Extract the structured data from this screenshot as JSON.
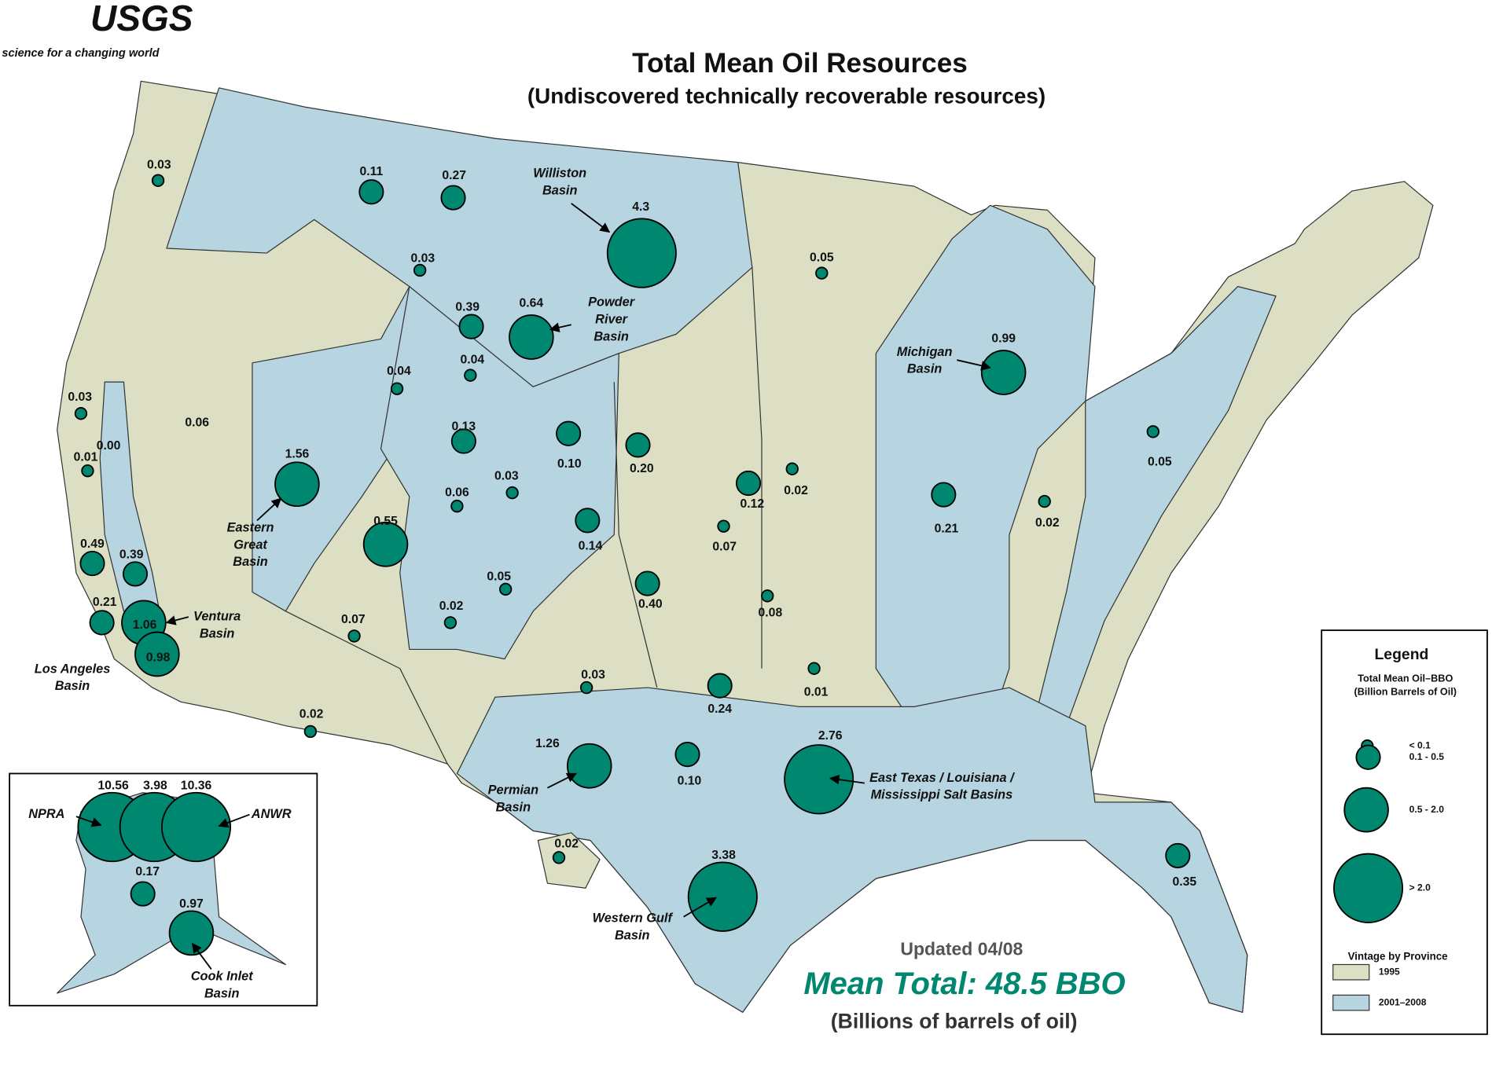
{
  "header": {
    "logo": "USGS",
    "tagline": "science for a changing world",
    "title": "Total Mean Oil Resources",
    "subtitle": "(Undiscovered technically recoverable resources)"
  },
  "summary": {
    "updated": "Updated 04/08",
    "total": "Mean Total: 48.5 BBO",
    "total_note": "(Billions of barrels of oil)"
  },
  "legend": {
    "title": "Legend",
    "size_title": [
      "Total Mean Oil–BBO",
      "(Billion Barrels of Oil)"
    ],
    "circle_color": "#00876f",
    "size_classes": [
      {
        "label": "< 0.1",
        "upper": 0.1
      },
      {
        "label": "0.1 - 0.5",
        "upper": 0.5
      },
      {
        "label": "0.5 - 2.0",
        "upper": 2.0
      },
      {
        "label": "> 2.0"
      }
    ],
    "vintage_title": "Vintage by Province",
    "vintages": [
      {
        "label": "1995",
        "color": "#dcdfc4"
      },
      {
        "label": "2001–2008",
        "color": "#b6d5e0"
      }
    ]
  },
  "basins": [
    {
      "value": 0.03,
      "value_label": "0.03"
    },
    {
      "value": 0.11,
      "value_label": "0.11"
    },
    {
      "value": 0.27,
      "value_label": "0.27"
    },
    {
      "value": 4.3,
      "value_label": "4.3",
      "name": [
        "Williston",
        "Basin"
      ]
    },
    {
      "value": 0.05,
      "value_label": "0.05"
    },
    {
      "value": 0.03,
      "value_label": "0.03"
    },
    {
      "value": 0.39,
      "value_label": "0.39"
    },
    {
      "value": 0.64,
      "value_label": "0.64",
      "name": [
        "Powder",
        "River",
        "Basin"
      ]
    },
    {
      "value": 0.99,
      "value_label": "0.99",
      "name": [
        "Michigan",
        "Basin"
      ]
    },
    {
      "value": 0.04,
      "value_label": "0.04"
    },
    {
      "value": 0.04,
      "value_label": "0.04"
    },
    {
      "value": 0.03,
      "value_label": "0.03"
    },
    {
      "value": 0.06,
      "value_label": "0.06",
      "marker": false
    },
    {
      "value": 0,
      "value_label": "0.00",
      "marker": false
    },
    {
      "value": 0.01,
      "value_label": "0.01"
    },
    {
      "value": 0.13,
      "value_label": "0.13"
    },
    {
      "value": 0.1,
      "value_label": "0.10"
    },
    {
      "value": 0.2,
      "value_label": "0.20"
    },
    {
      "value": 1.56,
      "value_label": "1.56",
      "name": [
        "Eastern",
        "Great",
        "Basin"
      ]
    },
    {
      "value": 0.03,
      "value_label": "0.03"
    },
    {
      "value": 0.06,
      "value_label": "0.06"
    },
    {
      "value": 0.12,
      "value_label": "0.12"
    },
    {
      "value": 0.02,
      "value_label": "0.02"
    },
    {
      "value": 0.21,
      "value_label": "0.21"
    },
    {
      "value": 0.02,
      "value_label": "0.02"
    },
    {
      "value": 0.05,
      "value_label": "0.05"
    },
    {
      "value": 0.14,
      "value_label": "0.14"
    },
    {
      "value": 0.07,
      "value_label": "0.07"
    },
    {
      "value": 0.55,
      "value_label": "0.55"
    },
    {
      "value": 0.49,
      "value_label": "0.49"
    },
    {
      "value": 0.39,
      "value_label": "0.39"
    },
    {
      "value": 0.05,
      "value_label": "0.05"
    },
    {
      "value": 0.4,
      "value_label": "0.40"
    },
    {
      "value": 0.08,
      "value_label": "0.08"
    },
    {
      "value": 0.02,
      "value_label": "0.02"
    },
    {
      "value": 0.07,
      "value_label": "0.07"
    },
    {
      "value": 0.21,
      "value_label": "0.21"
    },
    {
      "value": 1.06,
      "value_label": "1.06",
      "name": [
        "Ventura",
        "Basin"
      ]
    },
    {
      "value": 0.98,
      "value_label": "0.98",
      "name": [
        "Los Angeles",
        "Basin"
      ]
    },
    {
      "value": 0.03,
      "value_label": "0.03"
    },
    {
      "value": 0.24,
      "value_label": "0.24"
    },
    {
      "value": 0.01,
      "value_label": "0.01"
    },
    {
      "value": 0.02,
      "value_label": "0.02"
    },
    {
      "value": 1.26,
      "value_label": "1.26",
      "name": [
        "Permian",
        "Basin"
      ]
    },
    {
      "value": 0.1,
      "value_label": "0.10"
    },
    {
      "value": 2.76,
      "value_label": "2.76",
      "name": [
        "East Texas / Louisiana /",
        "Mississippi Salt Basins"
      ]
    },
    {
      "value": 0.02,
      "value_label": "0.02"
    },
    {
      "value": 3.38,
      "value_label": "3.38",
      "name": [
        "Western Gulf",
        "Basin"
      ]
    },
    {
      "value": 0.35,
      "value_label": "0.35"
    },
    {
      "value": 10.56,
      "value_label": "10.56",
      "name": [
        "NPRA"
      ]
    },
    {
      "value": 3.98,
      "value_label": "3.98"
    },
    {
      "value": 10.36,
      "value_label": "10.36",
      "name": [
        "ANWR"
      ]
    },
    {
      "value": 0.17,
      "value_label": "0.17"
    },
    {
      "value": 0.97,
      "value_label": "0.97",
      "name": [
        "Cook Inlet",
        "Basin"
      ]
    }
  ]
}
